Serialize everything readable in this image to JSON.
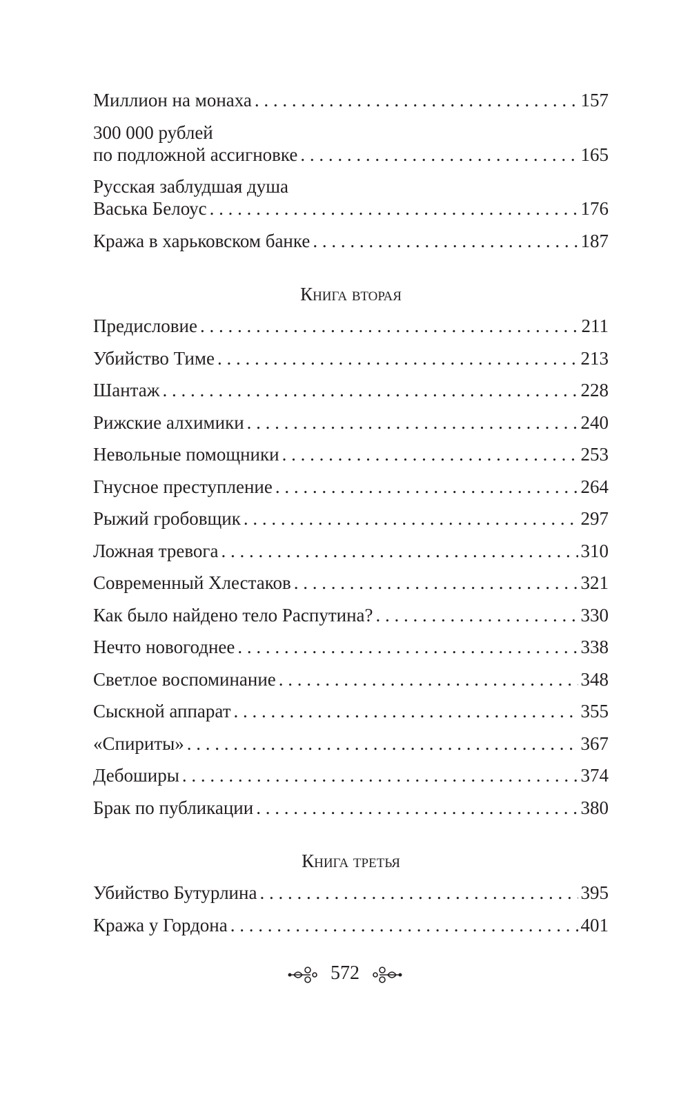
{
  "sections": [
    {
      "heading": null,
      "entries": [
        {
          "lines": [
            "Миллион на монаха"
          ],
          "page": "157"
        },
        {
          "lines": [
            "300 000 рублей",
            "по подложной ассигновке"
          ],
          "page": "165"
        },
        {
          "lines": [
            "Русская заблудшая душа",
            "Васька Белоус"
          ],
          "page": "176"
        },
        {
          "lines": [
            "Кража в харьковском банке"
          ],
          "page": "187"
        }
      ]
    },
    {
      "heading": "Книга вторая",
      "entries": [
        {
          "lines": [
            "Предисловие"
          ],
          "page": "211"
        },
        {
          "lines": [
            "Убийство Тиме"
          ],
          "page": "213"
        },
        {
          "lines": [
            "Шантаж"
          ],
          "page": "228"
        },
        {
          "lines": [
            "Рижские алхимики"
          ],
          "page": "240"
        },
        {
          "lines": [
            "Невольные помощники"
          ],
          "page": "253"
        },
        {
          "lines": [
            "Гнусное преступление"
          ],
          "page": "264"
        },
        {
          "lines": [
            "Рыжий гробовщик"
          ],
          "page": "297"
        },
        {
          "lines": [
            "Ложная тревога"
          ],
          "page": "310"
        },
        {
          "lines": [
            "Современный Хлестаков"
          ],
          "page": "321"
        },
        {
          "lines": [
            "Как было найдено тело Распутина?"
          ],
          "page": "330"
        },
        {
          "lines": [
            "Нечто новогоднее"
          ],
          "page": "338"
        },
        {
          "lines": [
            "Светлое воспоминание"
          ],
          "page": "348"
        },
        {
          "lines": [
            "Сыскной аппарат"
          ],
          "page": "355"
        },
        {
          "lines": [
            "«Спириты»"
          ],
          "page": "367"
        },
        {
          "lines": [
            "Дебоширы"
          ],
          "page": "374"
        },
        {
          "lines": [
            "Брак по публикации"
          ],
          "page": "380"
        }
      ]
    },
    {
      "heading": "Книга третья",
      "entries": [
        {
          "lines": [
            "Убийство Бутурлина"
          ],
          "page": "395"
        },
        {
          "lines": [
            "Кража у Гордона"
          ],
          "page": "401"
        }
      ]
    }
  ],
  "footer": {
    "page_number": "572",
    "ornament": "floral-swirl-icon"
  },
  "colors": {
    "text": "#231f20",
    "background": "#ffffff"
  }
}
